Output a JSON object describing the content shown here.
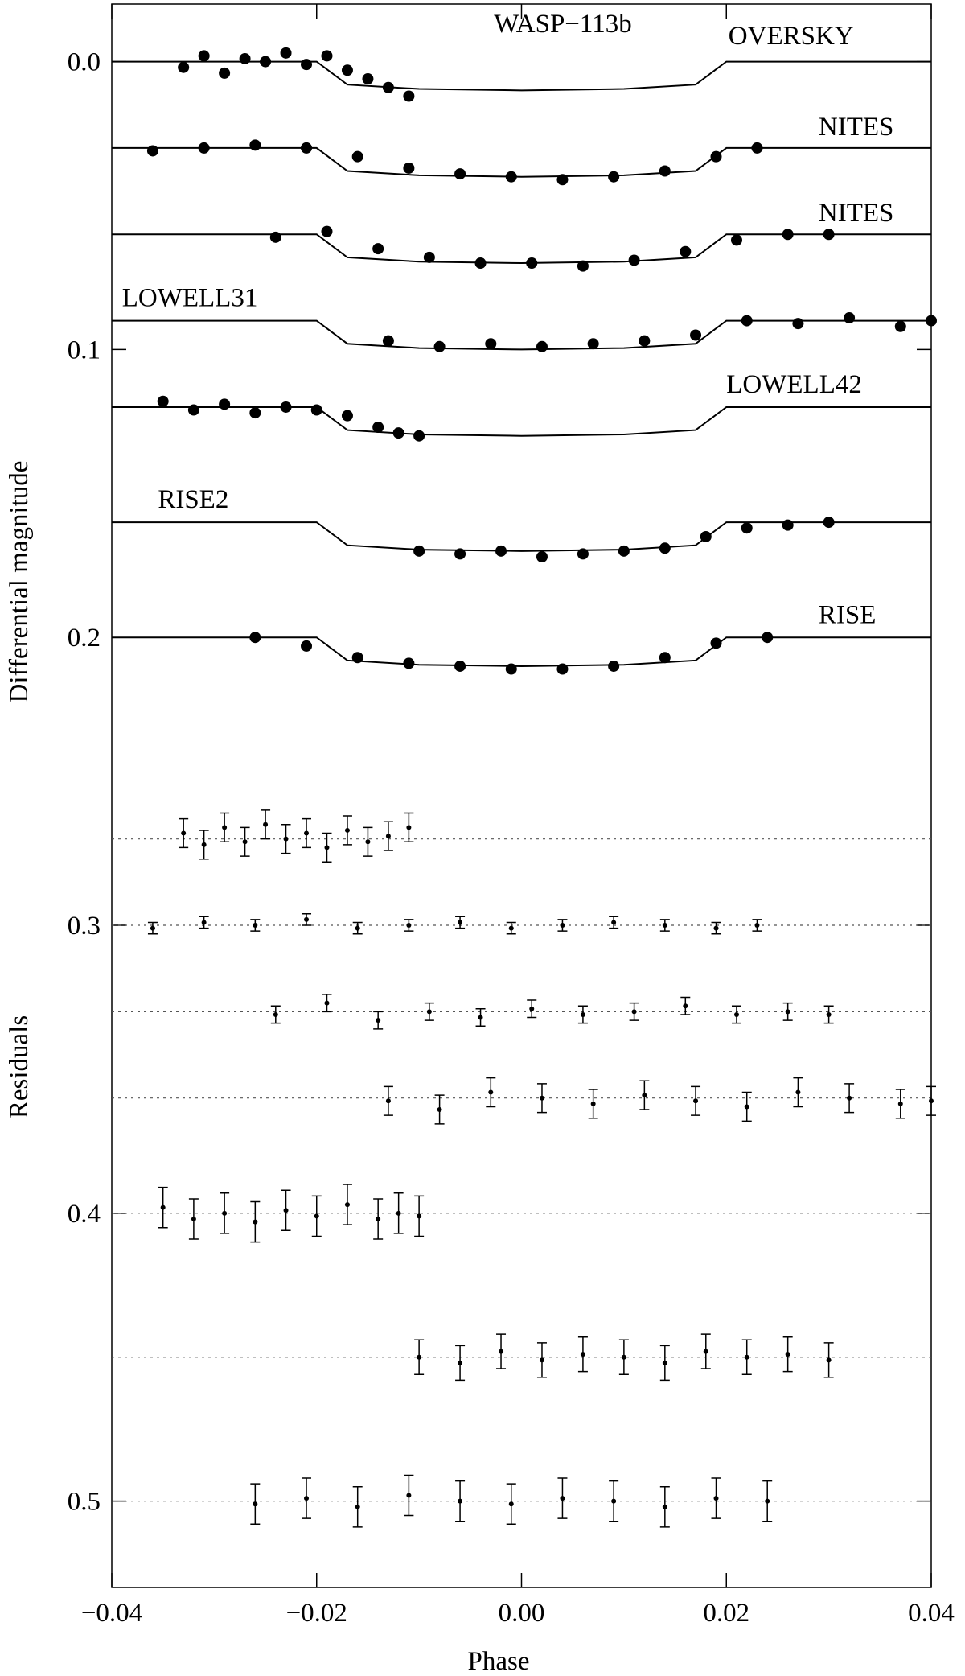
{
  "chart_data": {
    "type": "scatter",
    "title": "WASP−113b",
    "xlabel": "Phase",
    "ylabels": [
      "Differential magnitude",
      "Residuals"
    ],
    "xlim": [
      -0.04,
      0.04
    ],
    "ylim": [
      -0.02,
      0.53
    ],
    "invert_y": true,
    "xticks": [
      {
        "value": -0.04,
        "label": "−0.04"
      },
      {
        "value": -0.02,
        "label": "−0.02"
      },
      {
        "value": 0,
        "label": "0.00"
      },
      {
        "value": 0.02,
        "label": "0.02"
      },
      {
        "value": 0.04,
        "label": "0.04"
      }
    ],
    "yticks": [
      {
        "value": 0,
        "label": "0.0"
      },
      0.1,
      0.2,
      0.3,
      0.4,
      0.5
    ],
    "color": "#000000",
    "model_x": [
      -0.04,
      -0.02,
      -0.017,
      -0.01,
      0,
      0.01,
      0.017,
      0.02,
      0.04
    ],
    "series": [
      {
        "name": "OVERSKY",
        "x": [
          -0.033,
          -0.031,
          -0.029,
          -0.027,
          -0.025,
          -0.023,
          -0.021,
          -0.019,
          -0.017,
          -0.015,
          -0.013,
          -0.011
        ],
        "values": [
          0.002,
          -0.002,
          0.004,
          -0.001,
          0.0,
          -0.003,
          0.001,
          -0.002,
          0.003,
          0.006,
          0.009,
          0.012
        ],
        "model_values": [
          0,
          0,
          0.008,
          0.0095,
          0.01,
          0.0095,
          0.008,
          0,
          0
        ],
        "residual_baseline": 0.27,
        "residuals": [
          0.268,
          0.272,
          0.266,
          0.271,
          0.265,
          0.27,
          0.268,
          0.273,
          0.267,
          0.271,
          0.269,
          0.266
        ],
        "residual_errors": [
          0.005,
          0.005,
          0.005,
          0.005,
          0.005,
          0.005,
          0.005,
          0.005,
          0.005,
          0.005,
          0.005,
          0.005
        ]
      },
      {
        "name": "NITES",
        "x": [
          -0.036,
          -0.031,
          -0.026,
          -0.021,
          -0.016,
          -0.011,
          -0.006,
          -0.001,
          0.004,
          0.009,
          0.014,
          0.019,
          0.023
        ],
        "values": [
          0.031,
          0.03,
          0.029,
          0.03,
          0.033,
          0.037,
          0.039,
          0.04,
          0.041,
          0.04,
          0.038,
          0.033,
          0.03
        ],
        "model_values": [
          0.03,
          0.03,
          0.038,
          0.0395,
          0.04,
          0.0395,
          0.038,
          0.03,
          0.03
        ],
        "residual_baseline": 0.3,
        "residuals": [
          0.301,
          0.299,
          0.3,
          0.298,
          0.301,
          0.3,
          0.299,
          0.301,
          0.3,
          0.299,
          0.3,
          0.301,
          0.3
        ],
        "residual_errors": [
          0.002,
          0.002,
          0.002,
          0.002,
          0.002,
          0.002,
          0.002,
          0.002,
          0.002,
          0.002,
          0.002,
          0.002,
          0.002
        ]
      },
      {
        "name": "NITES",
        "x": [
          -0.024,
          -0.019,
          -0.014,
          -0.009,
          -0.004,
          0.001,
          0.006,
          0.011,
          0.016,
          0.021,
          0.026,
          0.03
        ],
        "values": [
          0.061,
          0.059,
          0.065,
          0.068,
          0.07,
          0.07,
          0.071,
          0.069,
          0.066,
          0.062,
          0.06,
          0.06
        ],
        "model_values": [
          0.06,
          0.06,
          0.068,
          0.0695,
          0.07,
          0.0695,
          0.068,
          0.06,
          0.06
        ],
        "residual_baseline": 0.33,
        "residuals": [
          0.331,
          0.327,
          0.333,
          0.33,
          0.332,
          0.329,
          0.331,
          0.33,
          0.328,
          0.331,
          0.33,
          0.331
        ],
        "residual_errors": [
          0.003,
          0.003,
          0.003,
          0.003,
          0.003,
          0.003,
          0.003,
          0.003,
          0.003,
          0.003,
          0.003,
          0.003
        ]
      },
      {
        "name": "LOWELL31",
        "x": [
          -0.013,
          -0.008,
          -0.003,
          0.002,
          0.007,
          0.012,
          0.017,
          0.022,
          0.027,
          0.032,
          0.037,
          0.04
        ],
        "values": [
          0.097,
          0.099,
          0.098,
          0.099,
          0.098,
          0.097,
          0.095,
          0.09,
          0.091,
          0.089,
          0.092,
          0.09
        ],
        "model_values": [
          0.09,
          0.09,
          0.098,
          0.0995,
          0.1,
          0.0995,
          0.098,
          0.09,
          0.09
        ],
        "residual_baseline": 0.36,
        "residuals": [
          0.361,
          0.364,
          0.358,
          0.36,
          0.362,
          0.359,
          0.361,
          0.363,
          0.358,
          0.36,
          0.362,
          0.361
        ],
        "residual_errors": [
          0.005,
          0.005,
          0.005,
          0.005,
          0.005,
          0.005,
          0.005,
          0.005,
          0.005,
          0.005,
          0.005,
          0.005
        ]
      },
      {
        "name": "LOWELL42",
        "x": [
          -0.035,
          -0.032,
          -0.029,
          -0.026,
          -0.023,
          -0.02,
          -0.017,
          -0.014,
          -0.012,
          -0.01
        ],
        "values": [
          0.118,
          0.121,
          0.119,
          0.122,
          0.12,
          0.121,
          0.123,
          0.127,
          0.129,
          0.13
        ],
        "model_values": [
          0.12,
          0.12,
          0.128,
          0.1295,
          0.13,
          0.1295,
          0.128,
          0.12,
          0.12
        ],
        "residual_baseline": 0.4,
        "residuals": [
          0.398,
          0.402,
          0.4,
          0.403,
          0.399,
          0.401,
          0.397,
          0.402,
          0.4,
          0.401
        ],
        "residual_errors": [
          0.007,
          0.007,
          0.007,
          0.007,
          0.007,
          0.007,
          0.007,
          0.007,
          0.007,
          0.007
        ]
      },
      {
        "name": "RISE2",
        "x": [
          -0.01,
          -0.006,
          -0.002,
          0.002,
          0.006,
          0.01,
          0.014,
          0.018,
          0.022,
          0.026,
          0.03
        ],
        "values": [
          0.17,
          0.171,
          0.17,
          0.172,
          0.171,
          0.17,
          0.169,
          0.165,
          0.162,
          0.161,
          0.16
        ],
        "model_values": [
          0.16,
          0.16,
          0.168,
          0.1695,
          0.17,
          0.1695,
          0.168,
          0.16,
          0.16
        ],
        "residual_baseline": 0.45,
        "residuals": [
          0.45,
          0.452,
          0.448,
          0.451,
          0.449,
          0.45,
          0.452,
          0.448,
          0.45,
          0.449,
          0.451
        ],
        "residual_errors": [
          0.006,
          0.006,
          0.006,
          0.006,
          0.006,
          0.006,
          0.006,
          0.006,
          0.006,
          0.006,
          0.006
        ]
      },
      {
        "name": "RISE",
        "x": [
          -0.026,
          -0.021,
          -0.016,
          -0.011,
          -0.006,
          -0.001,
          0.004,
          0.009,
          0.014,
          0.019,
          0.024
        ],
        "values": [
          0.2,
          0.203,
          0.207,
          0.209,
          0.21,
          0.211,
          0.211,
          0.21,
          0.207,
          0.202,
          0.2
        ],
        "model_values": [
          0.2,
          0.2,
          0.208,
          0.2095,
          0.21,
          0.2095,
          0.208,
          0.2,
          0.2
        ],
        "residual_baseline": 0.5,
        "residuals": [
          0.501,
          0.499,
          0.502,
          0.498,
          0.5,
          0.501,
          0.499,
          0.5,
          0.502,
          0.499,
          0.5
        ],
        "residual_errors": [
          0.007,
          0.007,
          0.007,
          0.007,
          0.007,
          0.007,
          0.007,
          0.007,
          0.007,
          0.007,
          0.007
        ]
      }
    ]
  }
}
